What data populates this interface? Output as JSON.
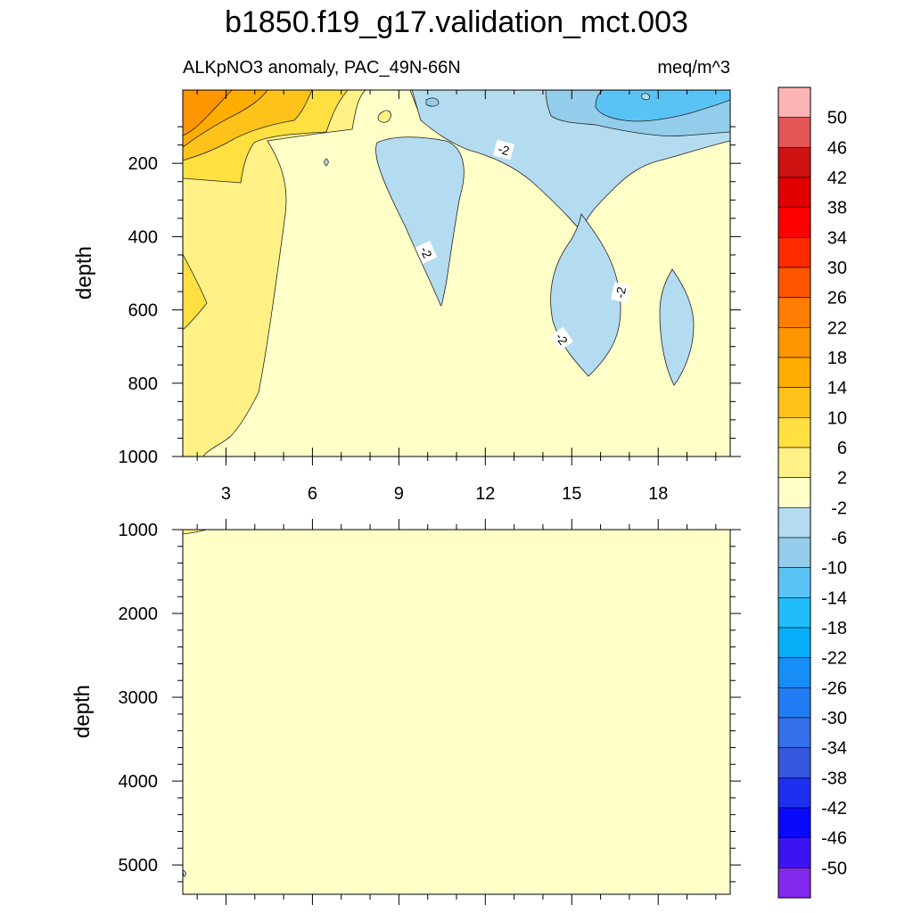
{
  "chart_data": {
    "type": "heatmap",
    "title": "b1850.f19_g17.validation_mct.003",
    "subtitle_left": "ALKpNO3 anomaly, PAC_49N-66N",
    "subtitle_right": "meq/m^3",
    "panels": [
      {
        "name": "upper-ocean",
        "ylabel": "depth",
        "xlim": [
          1.5,
          20.5
        ],
        "ylim": [
          1000,
          0
        ],
        "x_ticks": [
          3,
          6,
          9,
          12,
          15,
          18
        ],
        "x_tick_labels": [
          "3",
          "6",
          "9",
          "12",
          "15",
          "18"
        ],
        "y_ticks": [
          200,
          400,
          600,
          800,
          1000
        ],
        "y_tick_labels": [
          "200",
          "400",
          "600",
          "800",
          "1000"
        ],
        "contour_labels": [
          {
            "text": "-2",
            "x": 12.6,
            "depth": 210
          },
          {
            "text": "-2",
            "x": 10.0,
            "depth": 500
          },
          {
            "text": "-2",
            "x": 16.7,
            "depth": 580
          },
          {
            "text": "-2",
            "x": 14.5,
            "depth": 720
          }
        ],
        "dominant_level": "-2 to 2"
      },
      {
        "name": "full-depth",
        "ylabel": "depth",
        "xlim": [
          1.5,
          20.5
        ],
        "ylim": [
          5350,
          1000
        ],
        "y_ticks": [
          1000,
          2000,
          3000,
          4000,
          5000
        ],
        "y_tick_labels": [
          "1000",
          "2000",
          "3000",
          "4000",
          "5000"
        ],
        "dominant_level": "-2 to 2"
      }
    ],
    "colorbar": {
      "labels": [
        "50",
        "46",
        "42",
        "38",
        "34",
        "30",
        "26",
        "22",
        "18",
        "14",
        "10",
        "6",
        "2",
        "-2",
        "-6",
        "-10",
        "-14",
        "-18",
        "-22",
        "-26",
        "-30",
        "-34",
        "-38",
        "-42",
        "-46",
        "-50"
      ],
      "colors": [
        "#fdb4b4",
        "#e45555",
        "#cf1212",
        "#e10000",
        "#ff0000",
        "#ff2a00",
        "#ff5500",
        "#ff7d00",
        "#ff9500",
        "#ffad00",
        "#ffc21a",
        "#ffe040",
        "#fff185",
        "#ffffc8",
        "#b4dcf0",
        "#94cdeb",
        "#5ac3f5",
        "#21bcfb",
        "#06aef8",
        "#168ef6",
        "#1f7cf2",
        "#3470ea",
        "#3658df",
        "#1e2ff1",
        "#0909fb",
        "#3c14f3",
        "#8228ea"
      ]
    }
  }
}
